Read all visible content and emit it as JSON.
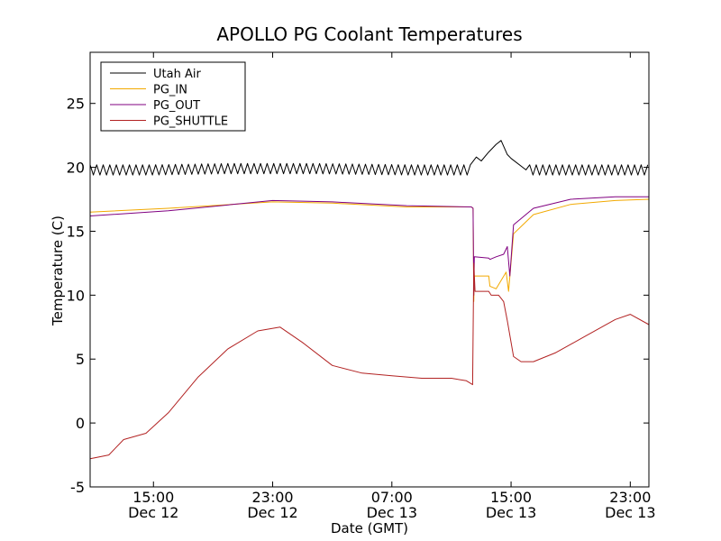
{
  "chart_data": {
    "type": "line",
    "title": "APOLLO PG Coolant Temperatures",
    "xlabel": "Date (GMT)",
    "ylabel": "Temperature (C)",
    "ylim": [
      -5,
      29
    ],
    "yticks": [
      -5,
      0,
      5,
      10,
      15,
      20,
      25
    ],
    "xlim": [
      "Dec 12 10:45",
      "Dec 14 00:15"
    ],
    "xticks": [
      {
        "time": "Dec 12 15:00",
        "top": "15:00",
        "bottom": "Dec 12"
      },
      {
        "time": "Dec 12 23:00",
        "top": "23:00",
        "bottom": "Dec 12"
      },
      {
        "time": "Dec 13 07:00",
        "top": "07:00",
        "bottom": "Dec 13"
      },
      {
        "time": "Dec 13 15:00",
        "top": "15:00",
        "bottom": "Dec 13"
      },
      {
        "time": "Dec 13 23:00",
        "top": "23:00",
        "bottom": "Dec 13"
      }
    ],
    "grid": false,
    "legend_position": "top-left",
    "series": [
      {
        "name": "Utah Air",
        "color": "#000000",
        "x": [
          "Dec 12 10:45",
          "Dec 12 15:00",
          "Dec 12 20:00",
          "Dec 13 02:00",
          "Dec 13 08:00",
          "Dec 13 12:25",
          "Dec 13 12:40",
          "Dec 13 13:00",
          "Dec 13 13:30",
          "Dec 13 14:00",
          "Dec 13 14:20",
          "Dec 13 14:45",
          "Dec 13 15:00",
          "Dec 13 16:00",
          "Dec 13 17:00",
          "Dec 13 20:00",
          "Dec 13 23:00",
          "Dec 14 00:15"
        ],
        "y": [
          19.8,
          19.8,
          19.9,
          19.9,
          19.8,
          19.8,
          20.8,
          20.5,
          21.2,
          21.8,
          22.1,
          21.0,
          20.7,
          19.8,
          19.8,
          19.8,
          19.8,
          19.8
        ],
        "oscillate_until": "Dec 13 12:25",
        "oscillate_from": "Dec 13 16:15",
        "oscillate_amplitude": 0.4
      },
      {
        "name": "PG_IN",
        "color": "#f2a900",
        "x": [
          "Dec 12 10:45",
          "Dec 12 16:00",
          "Dec 12 23:00",
          "Dec 13 03:00",
          "Dec 13 08:00",
          "Dec 13 12:20",
          "Dec 13 12:27",
          "Dec 13 12:30",
          "Dec 13 12:32",
          "Dec 13 13:30",
          "Dec 13 13:35",
          "Dec 13 14:00",
          "Dec 13 14:40",
          "Dec 13 14:50",
          "Dec 13 15:10",
          "Dec 13 16:30",
          "Dec 13 19:00",
          "Dec 13 22:00",
          "Dec 14 00:15"
        ],
        "y": [
          16.5,
          16.8,
          17.3,
          17.2,
          16.9,
          16.9,
          16.8,
          9.5,
          11.5,
          11.5,
          10.7,
          10.5,
          11.8,
          10.3,
          14.8,
          16.3,
          17.1,
          17.4,
          17.5
        ]
      },
      {
        "name": "PG_OUT",
        "color": "#800080",
        "x": [
          "Dec 12 10:45",
          "Dec 12 16:00",
          "Dec 12 23:00",
          "Dec 13 03:00",
          "Dec 13 08:00",
          "Dec 13 12:20",
          "Dec 13 12:27",
          "Dec 13 12:30",
          "Dec 13 12:32",
          "Dec 13 13:30",
          "Dec 13 13:35",
          "Dec 13 14:00",
          "Dec 13 14:30",
          "Dec 13 14:45",
          "Dec 13 14:55",
          "Dec 13 15:10",
          "Dec 13 16:30",
          "Dec 13 19:00",
          "Dec 13 22:00",
          "Dec 14 00:15"
        ],
        "y": [
          16.2,
          16.6,
          17.4,
          17.3,
          17.0,
          16.9,
          16.8,
          10.0,
          13.0,
          12.9,
          12.8,
          13.0,
          13.2,
          13.8,
          11.5,
          15.5,
          16.8,
          17.5,
          17.7,
          17.7
        ]
      },
      {
        "name": "PG_SHUTTLE",
        "color": "#b22222",
        "x": [
          "Dec 12 10:45",
          "Dec 12 12:00",
          "Dec 12 13:00",
          "Dec 12 14:30",
          "Dec 12 16:00",
          "Dec 12 18:00",
          "Dec 12 20:00",
          "Dec 12 22:00",
          "Dec 12 23:30",
          "Dec 13 01:00",
          "Dec 13 03:00",
          "Dec 13 05:00",
          "Dec 13 07:00",
          "Dec 13 09:00",
          "Dec 13 11:00",
          "Dec 13 12:00",
          "Dec 13 12:25",
          "Dec 13 12:30",
          "Dec 13 12:35",
          "Dec 13 13:30",
          "Dec 13 13:40",
          "Dec 13 14:10",
          "Dec 13 14:30",
          "Dec 13 14:45",
          "Dec 13 15:10",
          "Dec 13 15:40",
          "Dec 13 16:30",
          "Dec 13 18:00",
          "Dec 13 20:00",
          "Dec 13 22:00",
          "Dec 13 23:00",
          "Dec 14 00:15"
        ],
        "y": [
          -2.8,
          -2.5,
          -1.3,
          -0.8,
          0.8,
          3.6,
          5.8,
          7.2,
          7.5,
          6.3,
          4.5,
          3.9,
          3.7,
          3.5,
          3.5,
          3.3,
          3.0,
          12.5,
          10.3,
          10.3,
          10.0,
          10.0,
          9.5,
          8.0,
          5.2,
          4.8,
          4.8,
          5.5,
          6.8,
          8.1,
          8.5,
          7.7
        ]
      }
    ]
  }
}
